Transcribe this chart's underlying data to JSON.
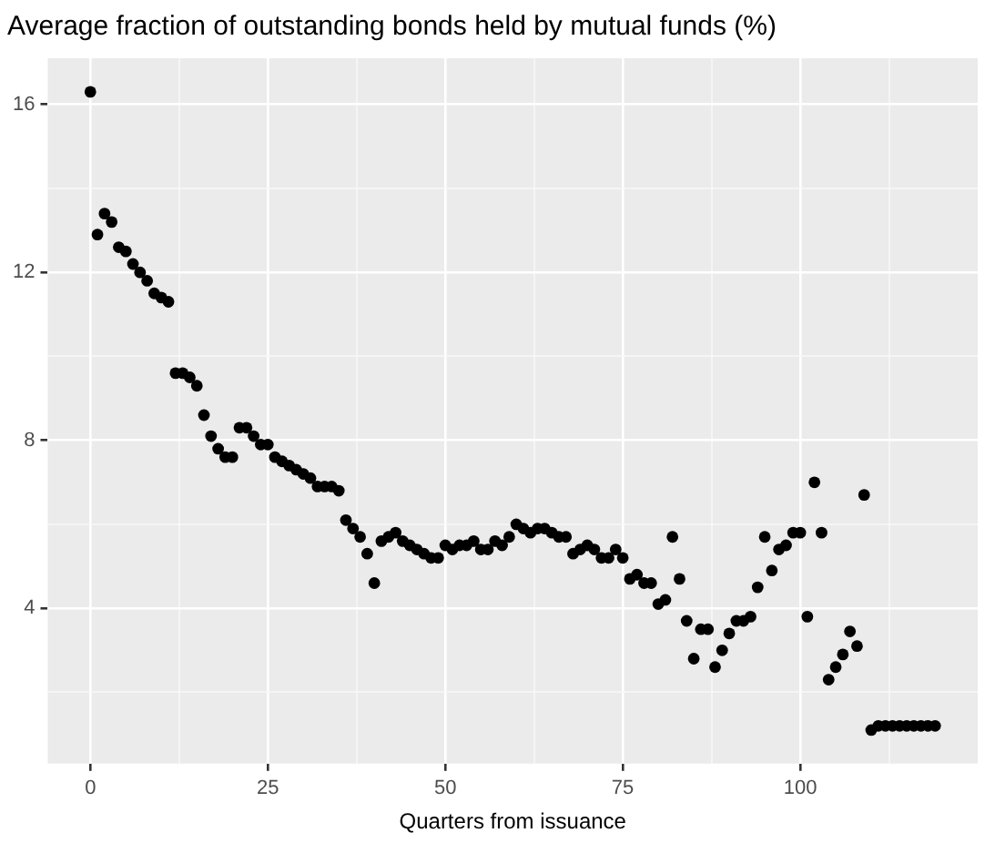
{
  "chart_data": {
    "type": "scatter",
    "title": "Average fraction of outstanding bonds held by mutual funds (%)",
    "xlabel": "Quarters from issuance",
    "x": [
      0,
      1,
      2,
      3,
      4,
      5,
      6,
      7,
      8,
      9,
      10,
      11,
      12,
      13,
      14,
      15,
      16,
      17,
      18,
      19,
      20,
      21,
      22,
      23,
      24,
      25,
      26,
      27,
      28,
      29,
      30,
      31,
      32,
      33,
      34,
      35,
      36,
      37,
      38,
      39,
      40,
      41,
      42,
      43,
      44,
      45,
      46,
      47,
      48,
      49,
      50,
      51,
      52,
      53,
      54,
      55,
      56,
      57,
      58,
      59,
      60,
      61,
      62,
      63,
      64,
      65,
      66,
      67,
      68,
      69,
      70,
      71,
      72,
      73,
      74,
      75,
      76,
      77,
      78,
      79,
      80,
      81,
      82,
      83,
      84,
      85,
      86,
      87,
      88,
      89,
      90,
      91,
      92,
      93,
      94,
      95,
      96,
      97,
      98,
      99,
      100,
      101,
      102,
      103,
      104,
      105,
      106,
      107,
      108,
      109,
      110,
      111,
      112,
      113,
      114,
      115,
      116,
      117,
      118,
      119
    ],
    "series": [
      {
        "color": "#000000",
        "values": [
          16.3,
          12.9,
          13.4,
          13.2,
          12.6,
          12.5,
          12.2,
          12.0,
          11.8,
          11.5,
          11.4,
          11.3,
          9.6,
          9.6,
          9.5,
          9.3,
          8.6,
          8.1,
          7.8,
          7.6,
          7.6,
          8.3,
          8.3,
          8.1,
          7.9,
          7.9,
          7.6,
          7.5,
          7.4,
          7.3,
          7.2,
          7.1,
          6.9,
          6.9,
          6.9,
          6.8,
          6.1,
          5.9,
          5.7,
          5.3,
          4.6,
          5.6,
          5.7,
          5.8,
          5.6,
          5.5,
          5.4,
          5.3,
          5.2,
          5.2,
          5.5,
          5.4,
          5.5,
          5.5,
          5.6,
          5.4,
          5.4,
          5.6,
          5.5,
          5.7,
          6.0,
          5.9,
          5.8,
          5.9,
          5.9,
          5.8,
          5.7,
          5.7,
          5.3,
          5.4,
          5.5,
          5.4,
          5.2,
          5.2,
          5.4,
          5.2,
          4.7,
          4.8,
          4.6,
          4.6,
          4.1,
          4.2,
          5.7,
          4.7,
          3.7,
          2.8,
          3.5,
          3.5,
          2.6,
          3.0,
          3.4,
          3.7,
          3.7,
          3.8,
          4.5,
          5.7,
          4.9,
          5.4,
          5.5,
          5.8,
          5.8,
          3.8,
          7.0,
          5.8,
          2.3,
          2.6,
          2.9,
          3.45,
          3.1,
          6.7,
          1.1,
          1.2,
          1.2,
          1.2,
          1.2,
          1.2,
          1.2,
          1.2,
          1.2,
          1.2
        ]
      }
    ],
    "xlim": [
      -6,
      125
    ],
    "ylim": [
      0.3,
      17.1
    ],
    "xticks": [
      0,
      {
        "value": 12.5,
        "label": null
      },
      25,
      {
        "value": 37.5,
        "label": null
      },
      50,
      {
        "value": 62.5,
        "label": null
      },
      75,
      {
        "value": 87.5,
        "label": null
      },
      100,
      {
        "value": 112.5,
        "label": null
      }
    ],
    "yticks": [
      {
        "value": 2,
        "label": null
      },
      4,
      {
        "value": 6,
        "label": null
      },
      8,
      {
        "value": 10,
        "label": null
      },
      12,
      {
        "value": 14,
        "label": null
      },
      16
    ],
    "grid": true,
    "legend": false,
    "marker": "circle"
  }
}
